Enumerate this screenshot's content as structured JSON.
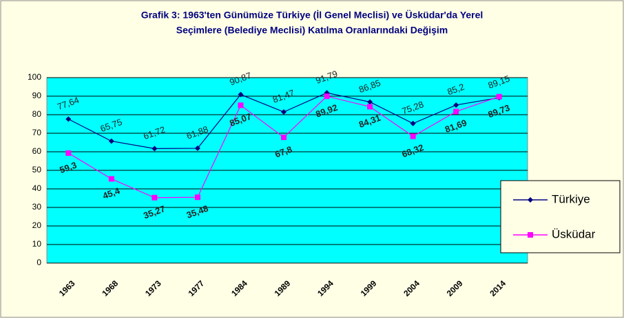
{
  "chart_data": {
    "type": "line",
    "title": [
      "Grafik 3: 1963'ten Günümüze Türkiye (İl Genel Meclisi) ve Üsküdar'da Yerel",
      "Seçimlere (Belediye Meclisi) Katılma Oranlarındaki Değişim"
    ],
    "categories": [
      "1963",
      "1968",
      "1973",
      "1977",
      "1984",
      "1989",
      "1994",
      "1999",
      "2004",
      "2009",
      "2014"
    ],
    "series": [
      {
        "name": "Türkiye",
        "color": "#000080",
        "marker": "diamond",
        "values": [
          77.64,
          65.75,
          61.72,
          61.88,
          90.87,
          81.47,
          91.79,
          86.85,
          75.28,
          85.2,
          89.15
        ],
        "value_labels": [
          "77,64",
          "65,75",
          "61,72",
          "61,88",
          "90,87",
          "81,47",
          "91,79",
          "86,85",
          "75,28",
          "85,2",
          "89,15"
        ]
      },
      {
        "name": "Üsküdar",
        "color": "#ff00ff",
        "marker": "square",
        "values": [
          59.3,
          45.4,
          35.27,
          35.48,
          85.07,
          67.8,
          89.92,
          84.31,
          68.32,
          81.69,
          89.73
        ],
        "value_labels": [
          "59,3",
          "45,4",
          "35,27",
          "35,48",
          "85,07",
          "67,8",
          "89,92",
          "84,31",
          "68,32",
          "81,69",
          "89,73"
        ]
      }
    ],
    "ylim": [
      0,
      100
    ],
    "yticks": [
      0,
      10,
      20,
      30,
      40,
      50,
      60,
      70,
      80,
      90,
      100
    ],
    "grid": true,
    "legend": "right"
  }
}
